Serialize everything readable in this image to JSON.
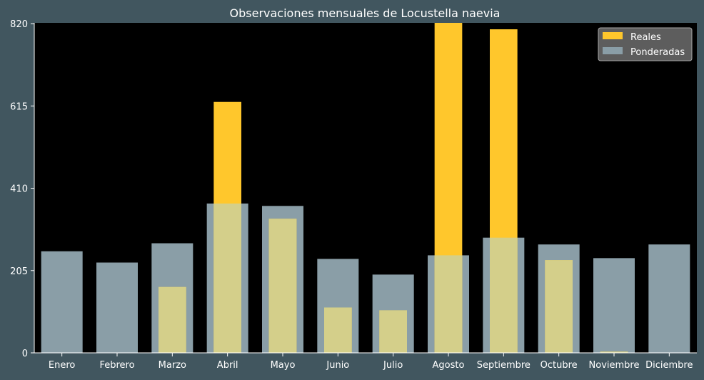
{
  "chart_data": {
    "type": "bar",
    "title": "Observaciones mensuales de Locustella naevia",
    "xlabel": "",
    "ylabel": "",
    "categories": [
      "Enero",
      "Febrero",
      "Marzo",
      "Abril",
      "Mayo",
      "Junio",
      "Julio",
      "Agosto",
      "Septiembre",
      "Octubre",
      "Noviembre",
      "Diciembre"
    ],
    "series": [
      {
        "name": "Reales",
        "color": "#ffc72c",
        "values": [
          0,
          0,
          164,
          625,
          334,
          113,
          106,
          822,
          806,
          231,
          3,
          0
        ]
      },
      {
        "name": "Ponderadas",
        "color": "#8a9ea7",
        "values": [
          253,
          225,
          273,
          372,
          366,
          234,
          195,
          243,
          287,
          270,
          236,
          270
        ]
      }
    ],
    "yticks": [
      "0",
      "205",
      "410",
      "615",
      "820"
    ],
    "ylim": [
      0,
      822
    ],
    "grid": false,
    "legend": "top-right",
    "colors": {
      "page_background": "#41565f",
      "plot_background": "#000000",
      "text": "#ffffff",
      "overlap": "#d4cf8a"
    }
  }
}
